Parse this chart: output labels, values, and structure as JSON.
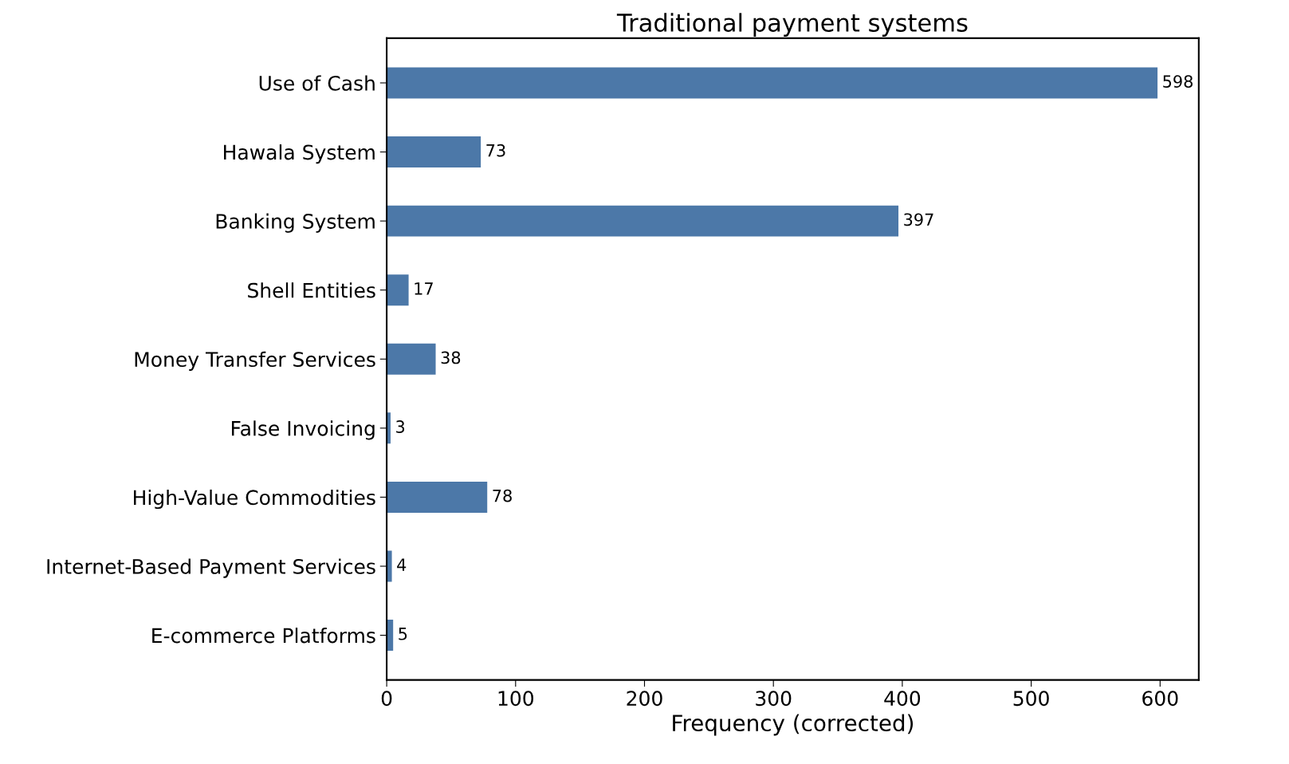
{
  "chart_data": {
    "type": "bar",
    "orientation": "horizontal",
    "title": "Traditional payment systems",
    "xlabel": "Frequency (corrected)",
    "categories": [
      "Use of Cash",
      "Hawala System",
      "Banking System",
      "Shell Entities",
      "Money Transfer Services",
      "False Invoicing",
      "High-Value Commodities",
      "Internet-Based Payment Services",
      "E-commerce Platforms"
    ],
    "values": [
      598,
      73,
      397,
      17,
      38,
      3,
      78,
      4,
      5
    ],
    "color": "#4c78a8",
    "xlim": [
      0,
      630
    ],
    "xticks": [
      0,
      100,
      200,
      300,
      400,
      500,
      600
    ],
    "data_labels": true,
    "grid": false
  }
}
